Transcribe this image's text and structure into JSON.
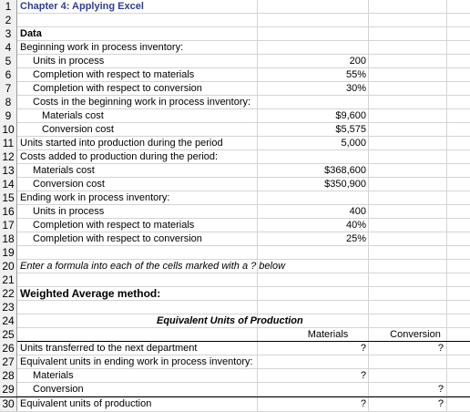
{
  "sheet": {
    "title": "Chapter 4: Applying Excel",
    "data_label": "Data",
    "bwip_label": "Beginning work in process inventory:",
    "units_in_process_label": "Units in process",
    "bwip_units": "200",
    "completion_materials_label": "Completion with respect to materials",
    "bwip_completion_materials": "55%",
    "completion_conversion_label": "Completion with respect to conversion",
    "bwip_completion_conversion": "30%",
    "costs_bwip_label": "Costs in the beginning work in process inventory:",
    "materials_cost_label": "Materials cost",
    "bwip_materials_cost": "$9,600",
    "conversion_cost_label": "Conversion cost",
    "bwip_conversion_cost": "$5,575",
    "units_started_label": "Units started into production during the period",
    "units_started": "5,000",
    "costs_added_label": "Costs added to production during the period:",
    "added_materials_cost": "$368,600",
    "added_conversion_cost": "$350,900",
    "ewip_label": "Ending work in process inventory:",
    "ewip_units": "400",
    "ewip_completion_materials": "40%",
    "ewip_completion_conversion": "25%",
    "instruction": "Enter a formula into each of the cells marked with a ? below",
    "method_label": "Weighted Average method:",
    "eu_title": "Equivalent Units of Production",
    "col_materials": "Materials",
    "col_conversion": "Conversion",
    "units_transferred_label": "Units transferred to the next department",
    "eu_ending_label": "Equivalent units in ending work in process inventory:",
    "materials_label": "Materials",
    "conversion_label": "Conversion",
    "eu_total_label": "Equivalent units of production",
    "q": "?"
  },
  "row_numbers": [
    "1",
    "2",
    "3",
    "4",
    "5",
    "6",
    "7",
    "8",
    "9",
    "10",
    "11",
    "12",
    "13",
    "14",
    "15",
    "16",
    "17",
    "18",
    "19",
    "20",
    "21",
    "22",
    "23",
    "24",
    "25",
    "26",
    "27",
    "28",
    "29",
    "30"
  ]
}
